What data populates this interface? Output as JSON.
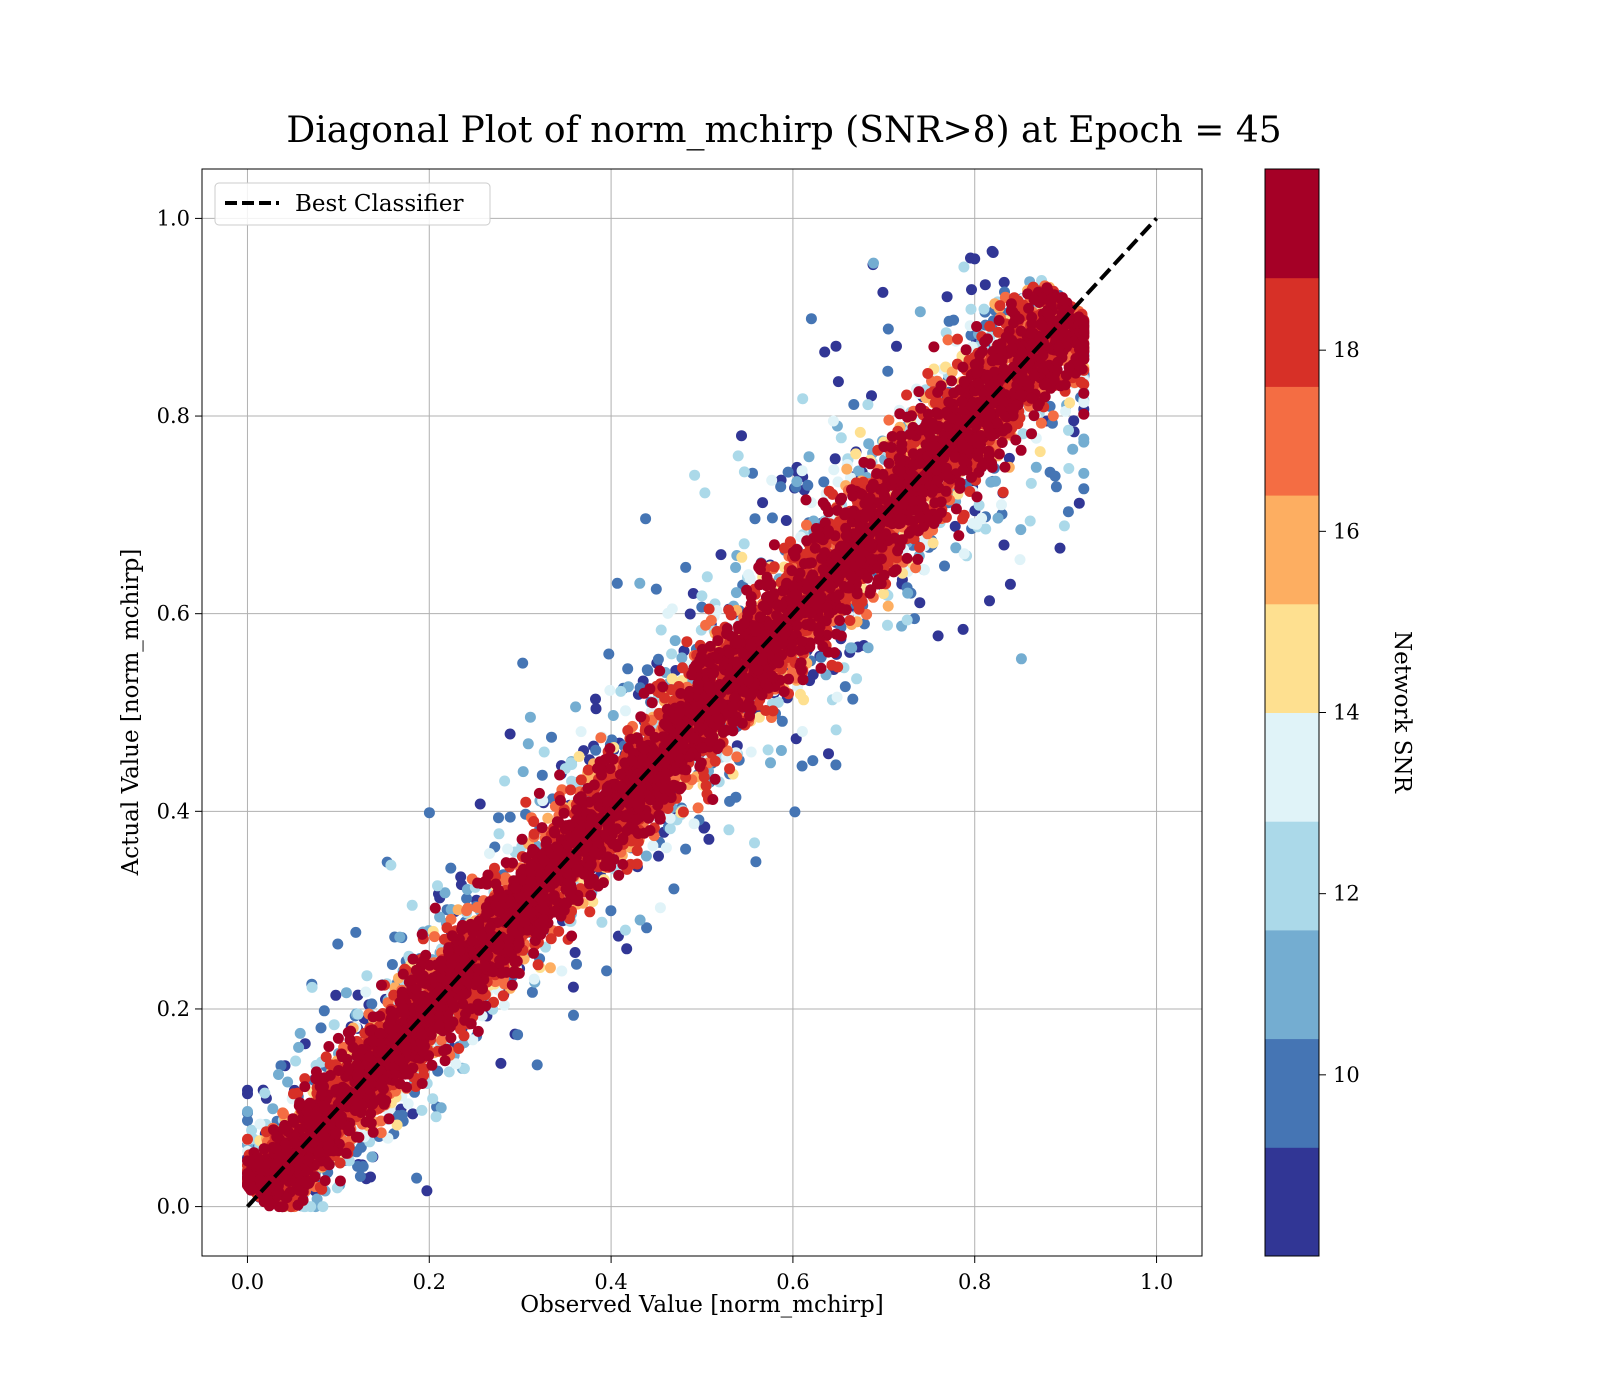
{
  "chart_data": {
    "type": "scatter",
    "title": "Diagonal Plot of norm_mchirp (SNR>8) at Epoch = 45",
    "xlabel": "Observed Value [norm_mchirp]",
    "ylabel": "Actual Value [norm_mchirp]",
    "xlim": [
      -0.05,
      1.05
    ],
    "ylim": [
      -0.05,
      1.05
    ],
    "xticks": [
      "0.0",
      "0.2",
      "0.4",
      "0.6",
      "0.8",
      "1.0"
    ],
    "yticks": [
      "0.0",
      "0.2",
      "0.4",
      "0.6",
      "0.8",
      "1.0"
    ],
    "grid": true,
    "legend": {
      "placement": "top-left",
      "entries": [
        {
          "label": "Best Classifier",
          "style": "black dashed line"
        }
      ]
    },
    "reference_line": {
      "name": "Best Classifier",
      "x": [
        0.0,
        1.0
      ],
      "y": [
        0.0,
        1.0
      ],
      "color": "#000000",
      "dash": true
    },
    "colorbar": {
      "label": "Network SNR",
      "range": [
        8,
        20
      ],
      "ticks": [
        "10",
        "12",
        "14",
        "16",
        "18"
      ],
      "tick_values": [
        10,
        12,
        14,
        16,
        18
      ],
      "colors": [
        "#313695",
        "#4575b4",
        "#74add1",
        "#abd9e9",
        "#e0f3f8",
        "#fee090",
        "#fdae61",
        "#f46d43",
        "#d73027",
        "#a50026"
      ],
      "colormap": "RdYlBu_r (10 discrete levels)"
    },
    "scatter_description": {
      "points_approx": 9000,
      "x_range": [
        0.0,
        0.92
      ],
      "y_range": [
        0.0,
        1.0
      ],
      "trend": "points cluster along y = x; high-SNR (red) points lie close to the diagonal, low-SNR (blue) points spread farther away"
    }
  }
}
